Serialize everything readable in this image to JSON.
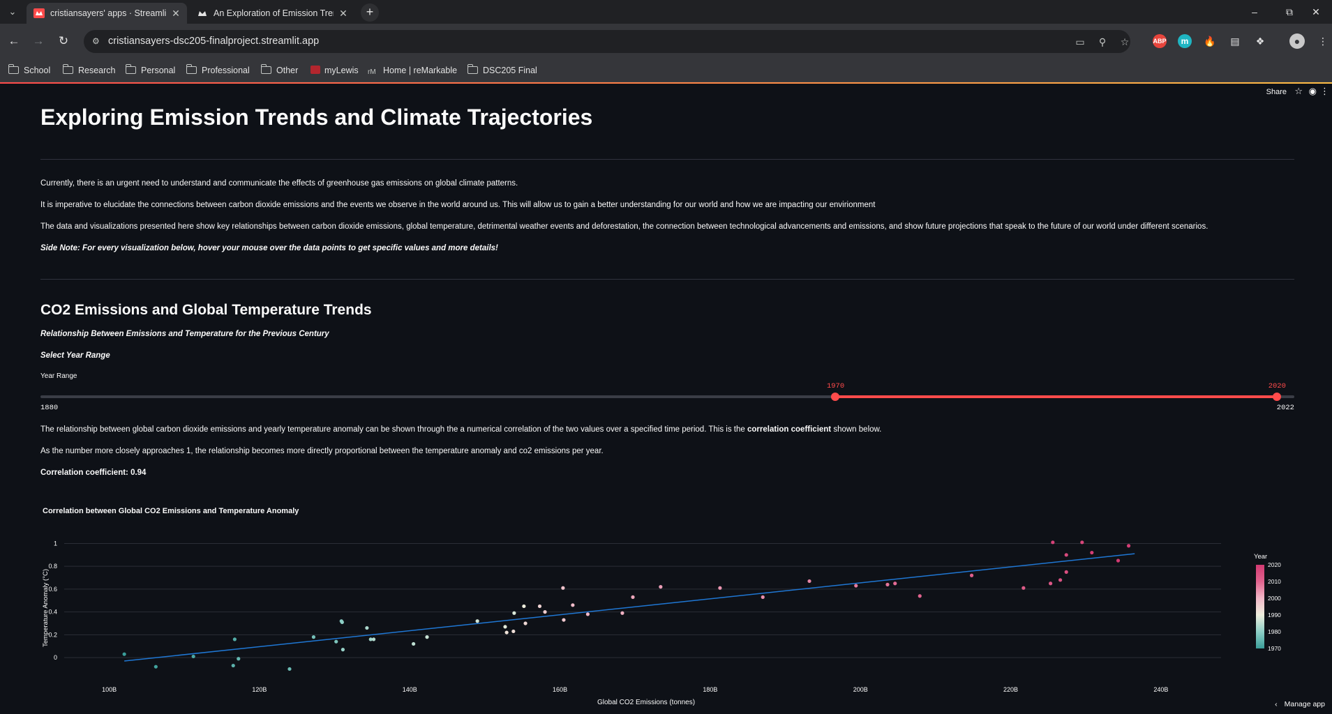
{
  "browser": {
    "tabs": [
      {
        "title": "cristiansayers' apps · Streamlit",
        "active": true
      },
      {
        "title": "An Exploration of Emission Tren",
        "active": false
      }
    ],
    "url": "cristiansayers-dsc205-finalproject.streamlit.app",
    "bookmarks": [
      {
        "label": "School",
        "icon": "folder-icon"
      },
      {
        "label": "Research",
        "icon": "folder-icon"
      },
      {
        "label": "Personal",
        "icon": "folder-icon"
      },
      {
        "label": "Professional",
        "icon": "folder-icon"
      },
      {
        "label": "Other",
        "icon": "folder-icon"
      },
      {
        "label": "myLewis",
        "icon": "mylewis-favicon"
      },
      {
        "label": "Home | reMarkable",
        "icon": "remarkable-favicon"
      },
      {
        "label": "DSC205 Final",
        "icon": "folder-icon"
      }
    ],
    "extensions": {
      "abp": "ABP",
      "m": "m"
    }
  },
  "app": {
    "toolbar": {
      "share": "Share"
    },
    "title": "Exploring Emission Trends and Climate Trajectories",
    "intro": {
      "p1": "Currently, there is an urgent need to understand and communicate the effects of greenhouse gas emissions on global climate patterns.",
      "p2": "It is imperative to elucidate the connections between carbon dioxide emissions and the events we observe in the world around us. This will allow us to gain a better understanding for our world and how we are impacting our envirionment",
      "p3": "The data and visualizations presented here show key relationships between carbon dioxide emissions, global temperature, detrimental weather events and deforestation, the connection between technological advancements and emissions, and show future projections that speak to the future of our world under different scenarios.",
      "note": "Side Note: For every visualization below, hover your mouse over the data points to get specific values and more details!"
    },
    "section": {
      "title": "CO2 Emissions and Global Temperature Trends",
      "subtitle": "Relationship Between Emissions and Temperature for the Previous Century",
      "select_label": "Select Year Range",
      "slider_label": "Year Range",
      "slider": {
        "min": 1880,
        "max": 2022,
        "low": 1970,
        "high": 2020
      },
      "text1_pre": "The relationship between global carbon dioxide emissions and yearly temperature anomaly can be shown through the a numerical correlation of the two values over a specified time period. This is the ",
      "text1_bold": "correlation coefficient",
      "text1_post": " shown below.",
      "text2": "As the number more closely approaches 1, the relationship becomes more directly proportional between the temperature anomaly and co2 emissions per year.",
      "corr": "Correlation coefficient: 0.94"
    },
    "manage": "Manage app"
  },
  "chart_data": {
    "type": "scatter",
    "title": "Correlation between Global CO2 Emissions and Temperature Anomaly",
    "xlabel": "Global CO2 Emissions (tonnes)",
    "ylabel": "Temperature Anomaly (°C)",
    "xlim": [
      94,
      248
    ],
    "ylim": [
      -0.14,
      1.07
    ],
    "x_tick_labels": [
      "100B",
      "120B",
      "140B",
      "160B",
      "180B",
      "200B",
      "220B",
      "240B"
    ],
    "x_ticks": [
      100,
      120,
      140,
      160,
      180,
      200,
      220,
      240
    ],
    "y_ticks": [
      0,
      0.2,
      0.4,
      0.6,
      0.8,
      1
    ],
    "y_tick_labels": [
      "0",
      "0.2",
      "0.4",
      "0.6",
      "0.8",
      "1"
    ],
    "colorbar": {
      "title": "Year",
      "ticks": [
        1970,
        1980,
        1990,
        2000,
        2010,
        2020
      ],
      "colors": [
        "#3a9e9a",
        "#8ecfc6",
        "#eeeedd",
        "#f1b8c8",
        "#e1638e",
        "#d23a72"
      ]
    },
    "trendline": {
      "x": [
        102,
        236.5
      ],
      "y": [
        -0.03,
        0.91
      ],
      "color": "#1f77d4"
    },
    "points": [
      {
        "x": 102,
        "y": 0.03,
        "year": 1970
      },
      {
        "x": 106.2,
        "y": -0.08,
        "year": 1971
      },
      {
        "x": 111.2,
        "y": 0.01,
        "year": 1972
      },
      {
        "x": 116.7,
        "y": 0.16,
        "year": 1973
      },
      {
        "x": 116.5,
        "y": -0.07,
        "year": 1974
      },
      {
        "x": 117.2,
        "y": -0.01,
        "year": 1975
      },
      {
        "x": 124,
        "y": -0.1,
        "year": 1976
      },
      {
        "x": 127.2,
        "y": 0.18,
        "year": 1977
      },
      {
        "x": 130.2,
        "y": 0.14,
        "year": 1978
      },
      {
        "x": 130.9,
        "y": 0.32,
        "year": 1979
      },
      {
        "x": 131,
        "y": 0.31,
        "year": 1980
      },
      {
        "x": 131.1,
        "y": 0.07,
        "year": 1981
      },
      {
        "x": 134.3,
        "y": 0.26,
        "year": 1983
      },
      {
        "x": 134.8,
        "y": 0.16,
        "year": 1982
      },
      {
        "x": 135.2,
        "y": 0.16,
        "year": 1984
      },
      {
        "x": 140.5,
        "y": 0.12,
        "year": 1985
      },
      {
        "x": 142.3,
        "y": 0.18,
        "year": 1986
      },
      {
        "x": 149,
        "y": 0.32,
        "year": 1987
      },
      {
        "x": 153.9,
        "y": 0.39,
        "year": 1988
      },
      {
        "x": 152.9,
        "y": 0.22,
        "year": 1992
      },
      {
        "x": 153.8,
        "y": 0.23,
        "year": 1993
      },
      {
        "x": 155.4,
        "y": 0.3,
        "year": 1994
      },
      {
        "x": 152.7,
        "y": 0.27,
        "year": 1989
      },
      {
        "x": 155.2,
        "y": 0.45,
        "year": 1990
      },
      {
        "x": 157.3,
        "y": 0.45,
        "year": 1995
      },
      {
        "x": 158,
        "y": 0.4,
        "year": 1996
      },
      {
        "x": 160.4,
        "y": 0.61,
        "year": 1998
      },
      {
        "x": 160.5,
        "y": 0.33,
        "year": 1997
      },
      {
        "x": 161.7,
        "y": 0.46,
        "year": 1999
      },
      {
        "x": 163.7,
        "y": 0.38,
        "year": 2000
      },
      {
        "x": 168.3,
        "y": 0.39,
        "year": 2001
      },
      {
        "x": 169.7,
        "y": 0.53,
        "year": 2002
      },
      {
        "x": 173.4,
        "y": 0.62,
        "year": 2003
      },
      {
        "x": 181.3,
        "y": 0.61,
        "year": 2004
      },
      {
        "x": 187,
        "y": 0.53,
        "year": 2005
      },
      {
        "x": 193.2,
        "y": 0.67,
        "year": 2006
      },
      {
        "x": 199.4,
        "y": 0.63,
        "year": 2007
      },
      {
        "x": 203.6,
        "y": 0.64,
        "year": 2008
      },
      {
        "x": 204.6,
        "y": 0.65,
        "year": 2009
      },
      {
        "x": 207.9,
        "y": 0.54,
        "year": 2010
      },
      {
        "x": 214.8,
        "y": 0.72,
        "year": 2011
      },
      {
        "x": 221.7,
        "y": 0.61,
        "year": 2012
      },
      {
        "x": 225.3,
        "y": 0.65,
        "year": 2013
      },
      {
        "x": 226.6,
        "y": 0.68,
        "year": 2014
      },
      {
        "x": 227.4,
        "y": 0.75,
        "year": 2015
      },
      {
        "x": 227.4,
        "y": 0.9,
        "year": 2016
      },
      {
        "x": 229.5,
        "y": 1.01,
        "year": 2017
      },
      {
        "x": 225.6,
        "y": 1.01,
        "year": 2018
      },
      {
        "x": 230.8,
        "y": 0.92,
        "year": 2019
      },
      {
        "x": 234.3,
        "y": 0.85,
        "year": 2020
      },
      {
        "x": 235.7,
        "y": 0.98,
        "year": 2019
      }
    ]
  }
}
